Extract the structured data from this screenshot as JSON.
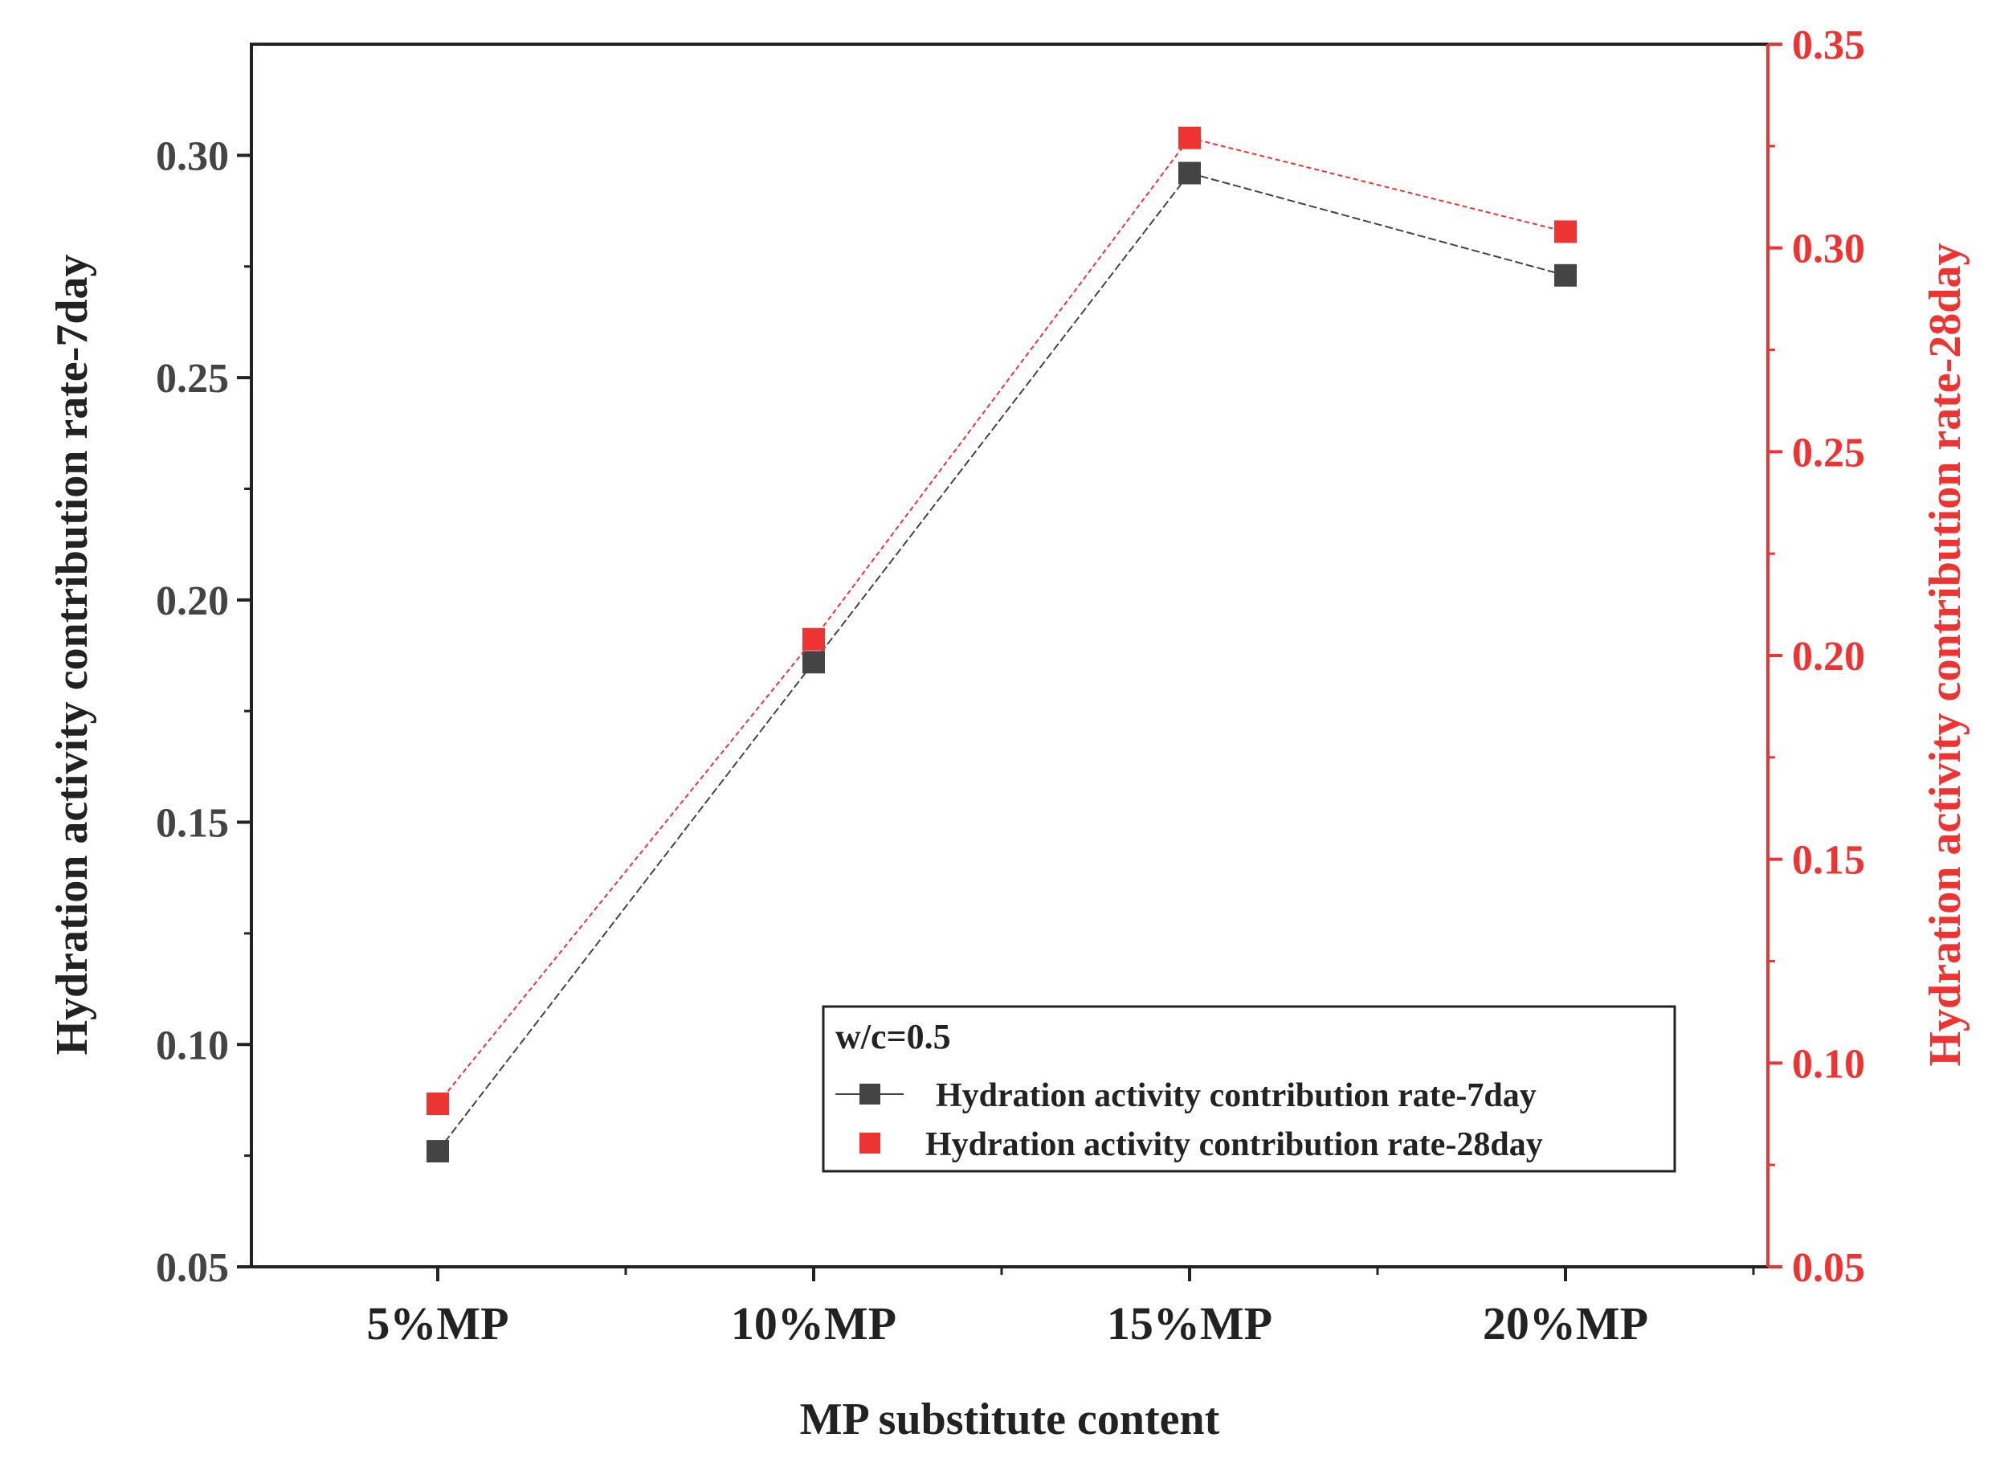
{
  "chart_data": {
    "type": "line",
    "categories": [
      "5%MP",
      "10%MP",
      "15%MP",
      "20%MP"
    ],
    "xlabel": "MP substitute content",
    "y_left": {
      "label": "Hydration activity contribution rate-7day",
      "range": [
        0.05,
        0.325
      ],
      "ticks": [
        0.05,
        0.1,
        0.15,
        0.2,
        0.25,
        0.3
      ],
      "tick_labels": [
        "0.05",
        "0.10",
        "0.15",
        "0.20",
        "0.25",
        "0.30"
      ]
    },
    "y_right": {
      "label": "Hydration activity contribution rate-28day",
      "range": [
        0.05,
        0.35
      ],
      "ticks": [
        0.05,
        0.1,
        0.15,
        0.2,
        0.25,
        0.3,
        0.35
      ],
      "tick_labels": [
        "0.05",
        "0.10",
        "0.15",
        "0.20",
        "0.25",
        "0.30",
        "0.35"
      ]
    },
    "series": [
      {
        "name": "Hydration activity contribution rate-7day",
        "axis": "left",
        "color": "#444444",
        "values": [
          0.076,
          0.186,
          0.296,
          0.273
        ]
      },
      {
        "name": "Hydration activity contribution rate-28day",
        "axis": "right",
        "color": "#ee3333",
        "values": [
          0.09,
          0.204,
          0.327,
          0.304
        ]
      }
    ],
    "legend": {
      "title": "w/c=0.5",
      "placement": "lower-right"
    }
  }
}
